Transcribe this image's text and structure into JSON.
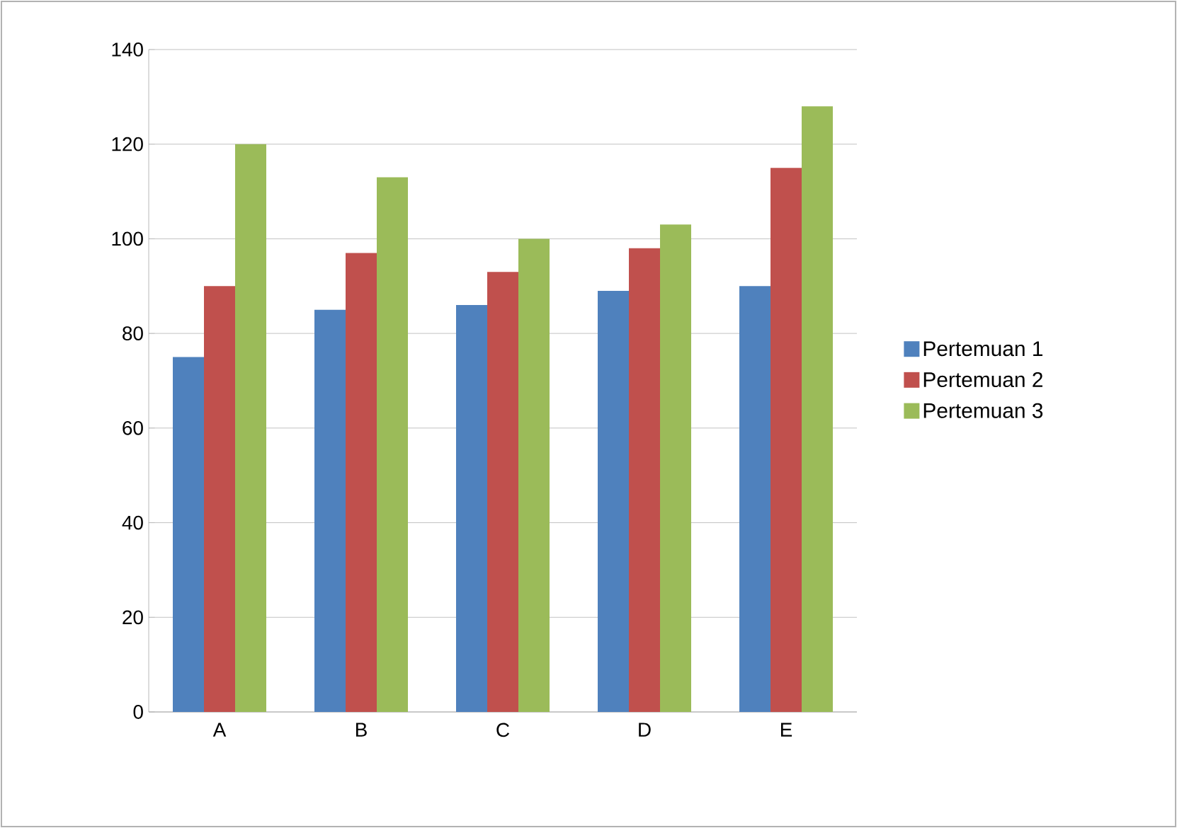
{
  "chart_data": {
    "type": "bar",
    "categories": [
      "A",
      "B",
      "C",
      "D",
      "E"
    ],
    "series": [
      {
        "name": "Pertemuan 1",
        "color": "#4f81bd",
        "values": [
          75,
          85,
          86,
          89,
          90
        ]
      },
      {
        "name": "Pertemuan 2",
        "color": "#c0504d",
        "values": [
          90,
          97,
          93,
          98,
          115
        ]
      },
      {
        "name": "Pertemuan 3",
        "color": "#9bbb59",
        "values": [
          120,
          113,
          100,
          103,
          128
        ]
      }
    ],
    "ylim": [
      0,
      140
    ],
    "yticks": [
      0,
      20,
      40,
      60,
      80,
      100,
      120,
      140
    ],
    "grid": "y",
    "legend": "right"
  }
}
